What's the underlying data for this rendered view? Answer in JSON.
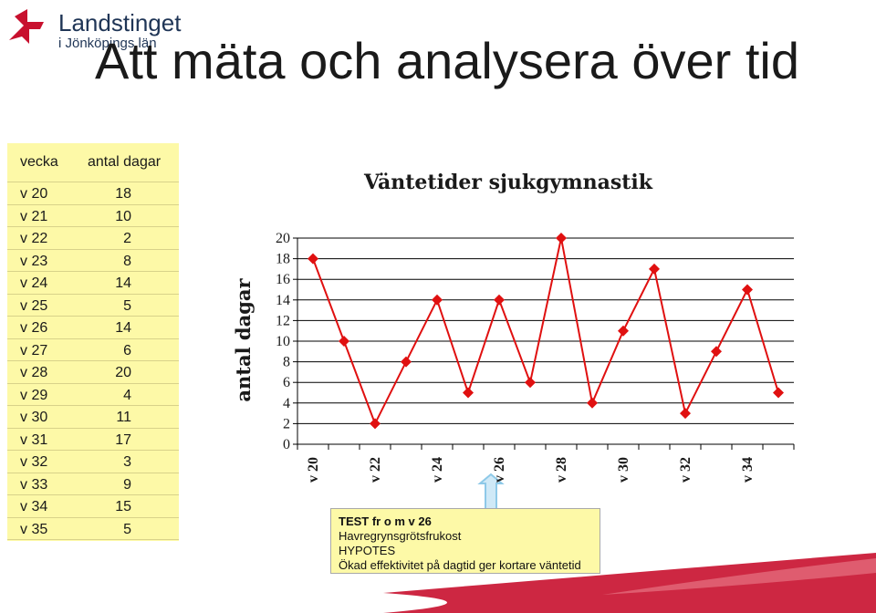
{
  "header": {
    "logo_name": "Landstinget",
    "logo_sub": "i Jönköpings län",
    "title": "Att mäta och analysera över tid",
    "brand_color": "#c8102e"
  },
  "table": {
    "col_week": "vecka",
    "col_days": "antal dagar",
    "rows": [
      {
        "week": "v 20",
        "days": "18"
      },
      {
        "week": "v 21",
        "days": "10"
      },
      {
        "week": "v 22",
        "days": "2"
      },
      {
        "week": "v 23",
        "days": "8"
      },
      {
        "week": "v 24",
        "days": "14"
      },
      {
        "week": "v 25",
        "days": "5"
      },
      {
        "week": "v 26",
        "days": "14"
      },
      {
        "week": "v 27",
        "days": "6"
      },
      {
        "week": "v 28",
        "days": "20"
      },
      {
        "week": "v 29",
        "days": "4"
      },
      {
        "week": "v 30",
        "days": "11"
      },
      {
        "week": "v 31",
        "days": "17"
      },
      {
        "week": "v 32",
        "days": "3"
      },
      {
        "week": "v 33",
        "days": "9"
      },
      {
        "week": "v 34",
        "days": "15"
      },
      {
        "week": "v 35",
        "days": "5"
      }
    ]
  },
  "chart_data": {
    "type": "line",
    "title": "Väntetider sjukgymnastik",
    "ylabel": "antal dagar",
    "xlabel": "",
    "x": [
      "v 20",
      "v 21",
      "v 22",
      "v 23",
      "v 24",
      "v 25",
      "v 26",
      "v 27",
      "v 28",
      "v 29",
      "v 30",
      "v 31",
      "v 32",
      "v 33",
      "v 34",
      "v 35"
    ],
    "x_tick_labels": [
      "v 20",
      "v 22",
      "v 24",
      "v 26",
      "v 28",
      "v 30",
      "v 32",
      "v 34"
    ],
    "series": [
      {
        "values": [
          18,
          10,
          2,
          8,
          14,
          5,
          14,
          6,
          20,
          4,
          11,
          17,
          3,
          9,
          15,
          5
        ],
        "color": "#e01010",
        "marker": "diamond"
      }
    ],
    "ylim": [
      0,
      20
    ],
    "yticks": [
      0,
      2,
      4,
      6,
      8,
      10,
      12,
      14,
      16,
      18,
      20
    ],
    "grid": true,
    "legend": "none"
  },
  "note": {
    "line1": "TEST fr o m v 26",
    "line2": "Havregrynsgrötsfrukost",
    "line3": "HYPOTES",
    "line4": "Ökad effektivitet på dagtid ger kortare väntetid",
    "arrow_color": "#8ec9e8"
  }
}
